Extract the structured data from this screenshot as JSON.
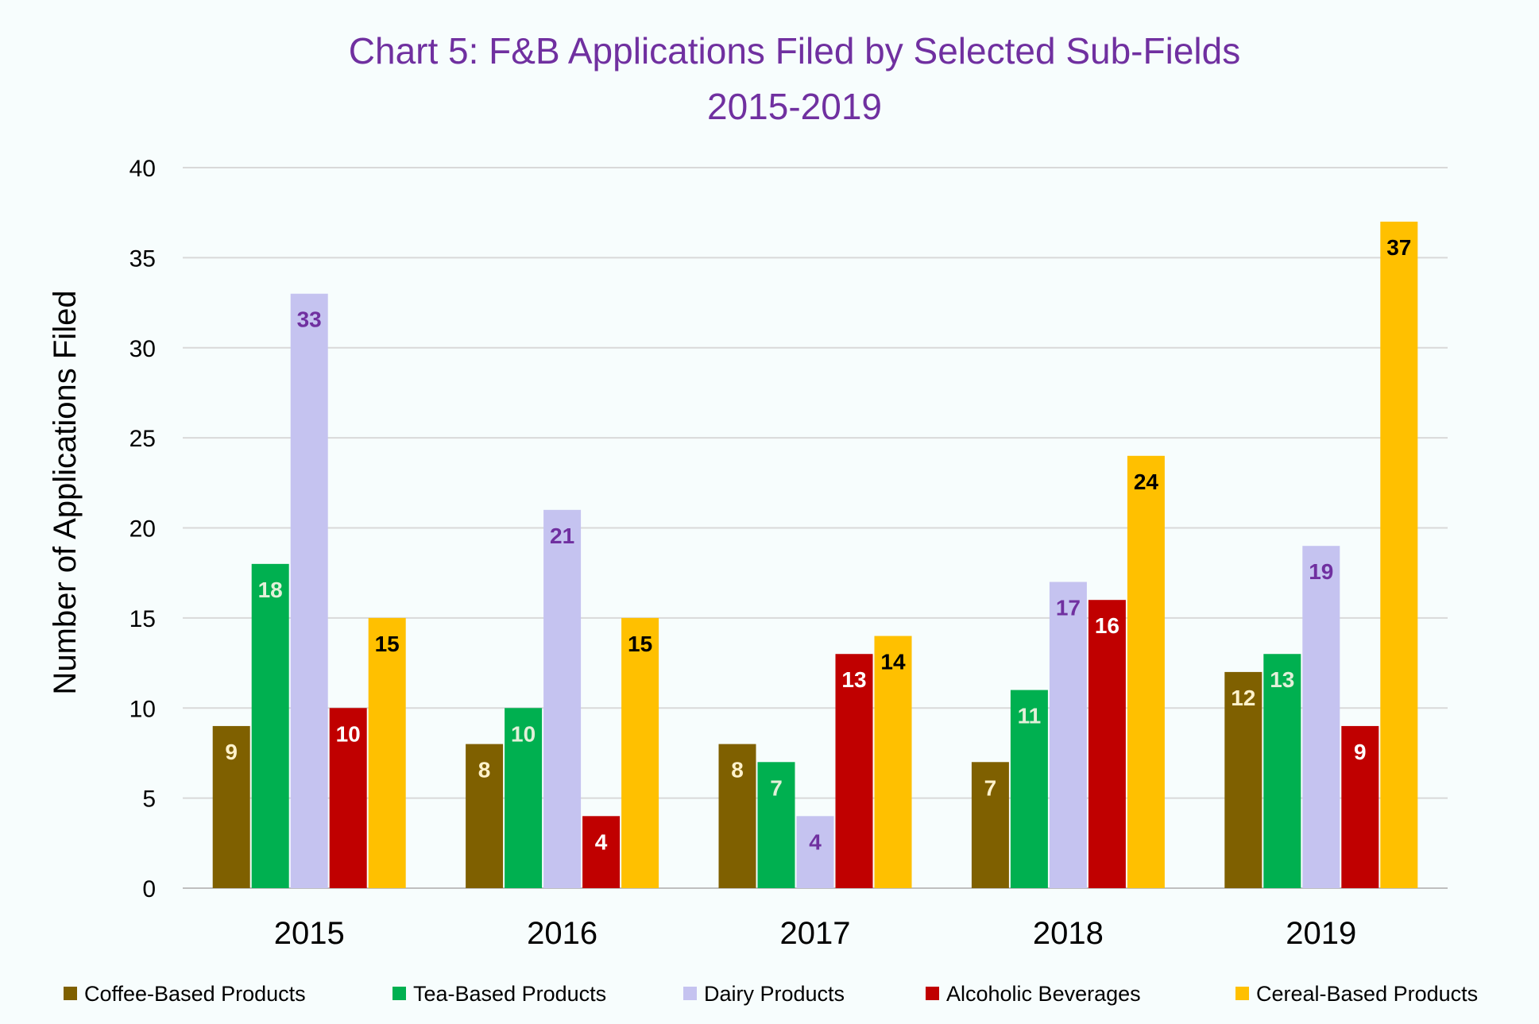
{
  "chart_data": {
    "type": "bar",
    "title_line1": "Chart 5: F&B Applications Filed by Selected Sub-Fields",
    "title_line2": "2015-2019",
    "xlabel": "",
    "ylabel": "Number of Applications Filed",
    "categories": [
      "2015",
      "2016",
      "2017",
      "2018",
      "2019"
    ],
    "ylim": [
      0,
      40
    ],
    "yticks": [
      0,
      5,
      10,
      15,
      20,
      25,
      30,
      35,
      40
    ],
    "grid": true,
    "legend_position": "bottom",
    "title_color": "#7030a0",
    "series": [
      {
        "name": "Coffee-Based Products",
        "values": [
          9,
          8,
          8,
          7,
          12
        ],
        "color": "#7f6000",
        "label_color": "#fff2cc"
      },
      {
        "name": "Tea-Based Products",
        "values": [
          18,
          10,
          7,
          11,
          13
        ],
        "color": "#00b050",
        "label_color": "#e2f0d9"
      },
      {
        "name": "Dairy Products",
        "values": [
          33,
          21,
          4,
          17,
          19
        ],
        "color": "#c5c3f0",
        "label_color": "#7030a0"
      },
      {
        "name": "Alcoholic Beverages",
        "values": [
          10,
          4,
          13,
          16,
          9
        ],
        "color": "#c00000",
        "label_color": "#ffffff"
      },
      {
        "name": "Cereal-Based Products",
        "values": [
          15,
          15,
          14,
          24,
          37
        ],
        "color": "#ffc000",
        "label_color": "#000000"
      }
    ]
  }
}
